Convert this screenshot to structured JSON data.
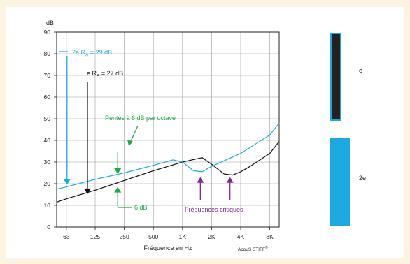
{
  "chart_data": {
    "type": "line",
    "ylabel": "dB",
    "xlabel": "Fréquence en Hz",
    "ylim": [
      0,
      90
    ],
    "yticks": [
      "0",
      "10",
      "20",
      "30",
      "40",
      "50",
      "60",
      "70",
      "80",
      "90"
    ],
    "xtick_labels": [
      "63",
      "125",
      "250",
      "500",
      "1K",
      "2K",
      "4K",
      "8K"
    ],
    "grid": true,
    "series": [
      {
        "name": "e",
        "color": "#111111",
        "points": [
          [
            50,
            11.5
          ],
          [
            63,
            13
          ],
          [
            125,
            17
          ],
          [
            250,
            21.5
          ],
          [
            500,
            26
          ],
          [
            1000,
            30
          ],
          [
            1400,
            31.5
          ],
          [
            1600,
            32
          ],
          [
            2000,
            29
          ],
          [
            2700,
            24.5
          ],
          [
            3300,
            24
          ],
          [
            4000,
            25.5
          ],
          [
            5000,
            28
          ],
          [
            8000,
            34
          ],
          [
            10000,
            39.5
          ]
        ]
      },
      {
        "name": "2e",
        "color": "#1fa9e1",
        "points": [
          [
            50,
            17.5
          ],
          [
            63,
            18.5
          ],
          [
            125,
            22
          ],
          [
            250,
            25
          ],
          [
            500,
            28.5
          ],
          [
            800,
            31
          ],
          [
            1000,
            30
          ],
          [
            1300,
            26
          ],
          [
            1600,
            25.5
          ],
          [
            2000,
            28
          ],
          [
            4000,
            34
          ],
          [
            8000,
            42.5
          ],
          [
            10000,
            48
          ]
        ]
      }
    ],
    "annotations": {
      "ra_2e": {
        "prefix": "2e R",
        "sub": "A",
        "value": " = 29 dB",
        "color": "#1fa9e1"
      },
      "ra_e": {
        "prefix": "e R",
        "sub": "A",
        "value": " = 27 dB",
        "color": "#111111"
      },
      "slope": {
        "text": "Pentes à 6 dB par octave",
        "color": "#1ea84e"
      },
      "six_db": {
        "text": "6 dB",
        "color": "#1ea84e"
      },
      "critical": {
        "text": "Fréquences critiques",
        "color": "#7b2a8c"
      }
    },
    "copyright": "AcouS STIFF",
    "copyright_mark": "®"
  },
  "legend": {
    "items": [
      {
        "label": "e",
        "fill": "#222222",
        "border": "#1fa9e1"
      },
      {
        "label": "2e",
        "fill": "#1fa9e1",
        "border": "#1fa9e1"
      }
    ]
  }
}
